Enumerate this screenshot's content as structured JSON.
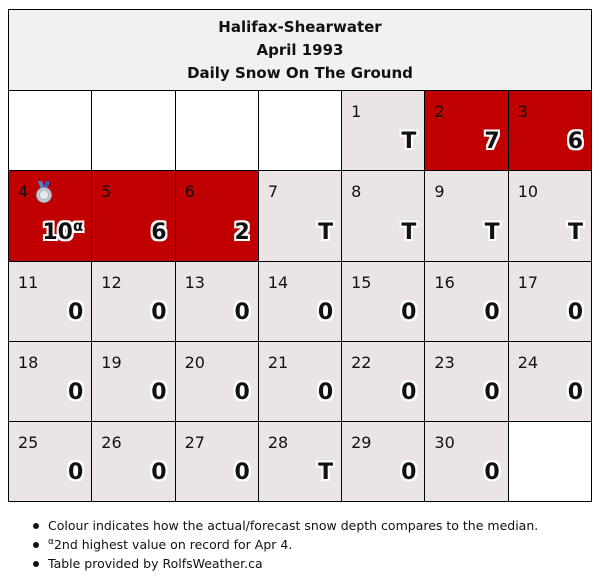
{
  "header": {
    "station": "Halifax-Shearwater",
    "month": "April 1993",
    "subtitle": "Daily Snow On The Ground"
  },
  "colors": {
    "above_median": "#c00000",
    "near_median": "#ebe4e4",
    "blank": "#ffffff",
    "header_bg": "#f1f1f1"
  },
  "weeks": [
    [
      {
        "day": "",
        "value": "",
        "status": "blank"
      },
      {
        "day": "",
        "value": "",
        "status": "blank"
      },
      {
        "day": "",
        "value": "",
        "status": "blank"
      },
      {
        "day": "",
        "value": "",
        "status": "blank"
      },
      {
        "day": "1",
        "value": "T",
        "status": "normal"
      },
      {
        "day": "2",
        "value": "7",
        "status": "high"
      },
      {
        "day": "3",
        "value": "6",
        "status": "high"
      }
    ],
    [
      {
        "day": "4",
        "value": "10",
        "sup": "α",
        "status": "high",
        "medal": "silver-medal-icon"
      },
      {
        "day": "5",
        "value": "6",
        "status": "high"
      },
      {
        "day": "6",
        "value": "2",
        "status": "high"
      },
      {
        "day": "7",
        "value": "T",
        "status": "normal"
      },
      {
        "day": "8",
        "value": "T",
        "status": "normal"
      },
      {
        "day": "9",
        "value": "T",
        "status": "normal"
      },
      {
        "day": "10",
        "value": "T",
        "status": "normal"
      }
    ],
    [
      {
        "day": "11",
        "value": "0",
        "status": "normal"
      },
      {
        "day": "12",
        "value": "0",
        "status": "normal"
      },
      {
        "day": "13",
        "value": "0",
        "status": "normal"
      },
      {
        "day": "14",
        "value": "0",
        "status": "normal"
      },
      {
        "day": "15",
        "value": "0",
        "status": "normal"
      },
      {
        "day": "16",
        "value": "0",
        "status": "normal"
      },
      {
        "day": "17",
        "value": "0",
        "status": "normal"
      }
    ],
    [
      {
        "day": "18",
        "value": "0",
        "status": "normal"
      },
      {
        "day": "19",
        "value": "0",
        "status": "normal"
      },
      {
        "day": "20",
        "value": "0",
        "status": "normal"
      },
      {
        "day": "21",
        "value": "0",
        "status": "normal"
      },
      {
        "day": "22",
        "value": "0",
        "status": "normal"
      },
      {
        "day": "23",
        "value": "0",
        "status": "normal"
      },
      {
        "day": "24",
        "value": "0",
        "status": "normal"
      }
    ],
    [
      {
        "day": "25",
        "value": "0",
        "status": "normal"
      },
      {
        "day": "26",
        "value": "0",
        "status": "normal"
      },
      {
        "day": "27",
        "value": "0",
        "status": "normal"
      },
      {
        "day": "28",
        "value": "T",
        "status": "normal"
      },
      {
        "day": "29",
        "value": "0",
        "status": "normal"
      },
      {
        "day": "30",
        "value": "0",
        "status": "normal"
      },
      {
        "day": "",
        "value": "",
        "status": "blank"
      }
    ]
  ],
  "notes": {
    "colour": "Colour indicates how the actual/forecast snow depth compares to the median.",
    "record_sup": "α",
    "record": "2nd highest value on record for Apr 4.",
    "credit": "Table provided by RolfsWeather.ca"
  }
}
